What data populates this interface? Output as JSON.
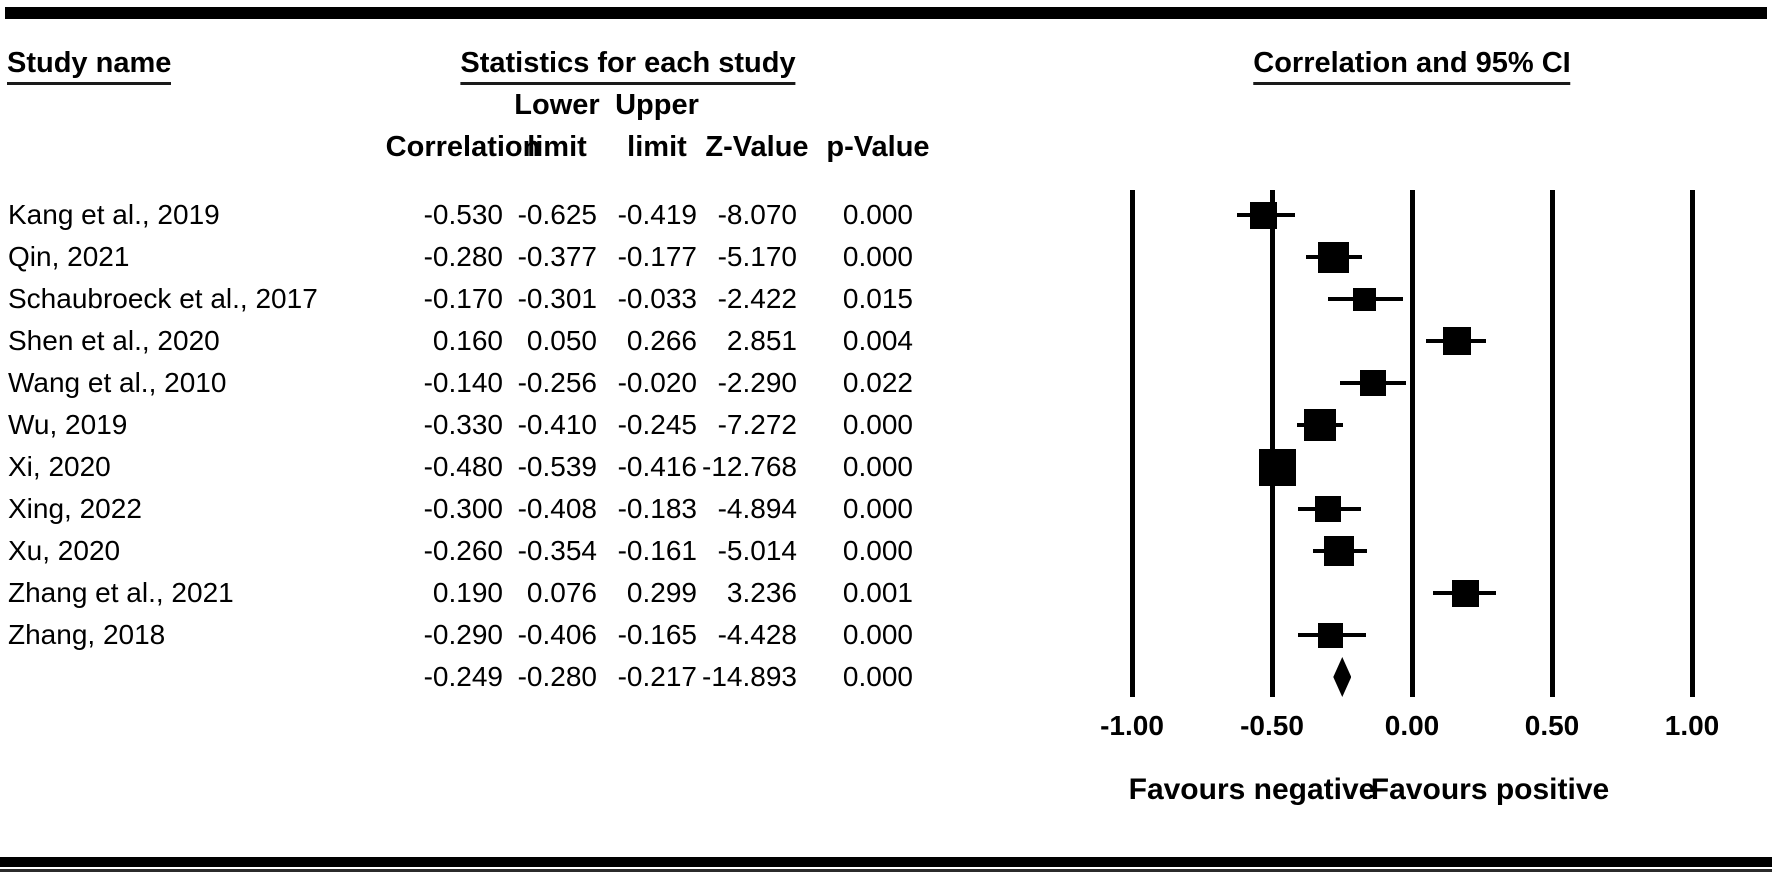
{
  "colors": {
    "ink": "#000000",
    "paper": "#ffffff"
  },
  "header": {
    "study_col": "Study name",
    "stats_col": "Statistics for each study",
    "plot_col": "Correlation and 95% CI"
  },
  "subheaders": [
    {
      "label": "Correlation"
    },
    {
      "label": "Lower\nlimit"
    },
    {
      "label": "Upper\nlimit"
    },
    {
      "label": "Z-Value"
    },
    {
      "label": "p-Value"
    }
  ],
  "table": {
    "rows": [
      {
        "name": "Kang et al., 2019",
        "correlation": "-0.530",
        "lower": "-0.625",
        "upper": "-0.419",
        "z": "-8.070",
        "p": "0.000"
      },
      {
        "name": "Qin, 2021",
        "correlation": "-0.280",
        "lower": "-0.377",
        "upper": "-0.177",
        "z": "-5.170",
        "p": "0.000"
      },
      {
        "name": "Schaubroeck et al., 2017",
        "correlation": "-0.170",
        "lower": "-0.301",
        "upper": "-0.033",
        "z": "-2.422",
        "p": "0.015"
      },
      {
        "name": "Shen et al., 2020",
        "correlation": "0.160",
        "lower": "0.050",
        "upper": "0.266",
        "z": "2.851",
        "p": "0.004"
      },
      {
        "name": "Wang et al., 2010",
        "correlation": "-0.140",
        "lower": "-0.256",
        "upper": "-0.020",
        "z": "-2.290",
        "p": "0.022"
      },
      {
        "name": "Wu, 2019",
        "correlation": "-0.330",
        "lower": "-0.410",
        "upper": "-0.245",
        "z": "-7.272",
        "p": "0.000"
      },
      {
        "name": "Xi, 2020",
        "correlation": "-0.480",
        "lower": "-0.539",
        "upper": "-0.416",
        "z": "-12.768",
        "p": "0.000"
      },
      {
        "name": "Xing, 2022",
        "correlation": "-0.300",
        "lower": "-0.408",
        "upper": "-0.183",
        "z": "-4.894",
        "p": "0.000"
      },
      {
        "name": "Xu, 2020",
        "correlation": "-0.260",
        "lower": "-0.354",
        "upper": "-0.161",
        "z": "-5.014",
        "p": "0.000"
      },
      {
        "name": "Zhang et al., 2021",
        "correlation": "0.190",
        "lower": "0.076",
        "upper": "0.299",
        "z": "3.236",
        "p": "0.001"
      },
      {
        "name": "Zhang, 2018",
        "correlation": "-0.290",
        "lower": "-0.406",
        "upper": "-0.165",
        "z": "-4.428",
        "p": "0.000"
      }
    ],
    "summary_row": {
      "name": "",
      "correlation": "-0.249",
      "lower": "-0.280",
      "upper": "-0.217",
      "z": "-14.893",
      "p": "0.000"
    }
  },
  "axis": {
    "ticks": [
      {
        "label": "-1.00",
        "value": -1.0
      },
      {
        "label": "-0.50",
        "value": -0.5
      },
      {
        "label": "0.00",
        "value": 0.0
      },
      {
        "label": "0.50",
        "value": 0.5
      },
      {
        "label": "1.00",
        "value": 1.0
      }
    ]
  },
  "footer": {
    "negative": "Favours negative",
    "positive": "Favours positive"
  },
  "chart_data": {
    "type": "forest",
    "title": "Correlation and 95% CI",
    "xlabel": "Correlation",
    "xlim": [
      -1.0,
      1.0
    ],
    "xticks": [
      -1.0,
      -0.5,
      0.0,
      0.5,
      1.0
    ],
    "grid": "vertical-lines-at-ticks",
    "annotations": [
      "Favours negative",
      "Favours positive"
    ],
    "studies": [
      {
        "name": "Kang et al., 2019",
        "correlation": -0.53,
        "lower": -0.625,
        "upper": -0.419,
        "z": -8.07,
        "p": 0.0,
        "marker_size": 27
      },
      {
        "name": "Qin, 2021",
        "correlation": -0.28,
        "lower": -0.377,
        "upper": -0.177,
        "z": -5.17,
        "p": 0.0,
        "marker_size": 31
      },
      {
        "name": "Schaubroeck et al., 2017",
        "correlation": -0.17,
        "lower": -0.301,
        "upper": -0.033,
        "z": -2.422,
        "p": 0.015,
        "marker_size": 23
      },
      {
        "name": "Shen et al., 2020",
        "correlation": 0.16,
        "lower": 0.05,
        "upper": 0.266,
        "z": 2.851,
        "p": 0.004,
        "marker_size": 28
      },
      {
        "name": "Wang et al., 2010",
        "correlation": -0.14,
        "lower": -0.256,
        "upper": -0.02,
        "z": -2.29,
        "p": 0.022,
        "marker_size": 26
      },
      {
        "name": "Wu, 2019",
        "correlation": -0.33,
        "lower": -0.41,
        "upper": -0.245,
        "z": -7.272,
        "p": 0.0,
        "marker_size": 32
      },
      {
        "name": "Xi, 2020",
        "correlation": -0.48,
        "lower": -0.539,
        "upper": -0.416,
        "z": -12.768,
        "p": 0.0,
        "marker_size": 37
      },
      {
        "name": "Xing, 2022",
        "correlation": -0.3,
        "lower": -0.408,
        "upper": -0.183,
        "z": -4.894,
        "p": 0.0,
        "marker_size": 26
      },
      {
        "name": "Xu, 2020",
        "correlation": -0.26,
        "lower": -0.354,
        "upper": -0.161,
        "z": -5.014,
        "p": 0.0,
        "marker_size": 30
      },
      {
        "name": "Zhang et al., 2021",
        "correlation": 0.19,
        "lower": 0.076,
        "upper": 0.299,
        "z": 3.236,
        "p": 0.001,
        "marker_size": 27
      },
      {
        "name": "Zhang, 2018",
        "correlation": -0.29,
        "lower": -0.406,
        "upper": -0.165,
        "z": -4.428,
        "p": 0.0,
        "marker_size": 25
      }
    ],
    "summary": {
      "correlation": -0.249,
      "lower": -0.28,
      "upper": -0.217,
      "z": -14.893,
      "p": 0.0,
      "marker": "diamond"
    }
  }
}
